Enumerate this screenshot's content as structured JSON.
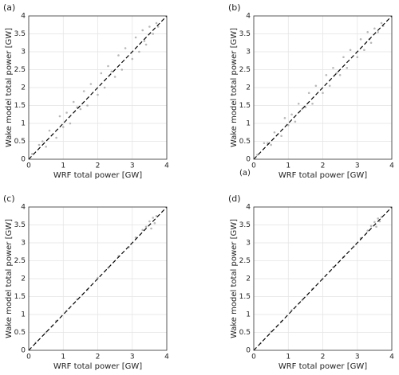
{
  "chart_data": [
    {
      "type": "scatter",
      "title": "(a)",
      "xlabel": "WRF total power [GW]",
      "ylabel": "Wake model total power [GW]",
      "color": "#888888",
      "grid": true,
      "identity_line": true,
      "xlim": [
        0,
        4
      ],
      "ylim": [
        0,
        4
      ],
      "xticks": [
        0,
        1,
        2,
        3,
        4
      ],
      "yticks": [
        0,
        0.5,
        1,
        1.5,
        2,
        2.5,
        3,
        3.5,
        4
      ],
      "x": [
        0.1,
        0.3,
        0.5,
        0.6,
        0.8,
        0.9,
        1.0,
        1.1,
        1.2,
        1.3,
        1.5,
        1.6,
        1.7,
        1.8,
        2.0,
        2.1,
        2.2,
        2.3,
        2.5,
        2.6,
        2.7,
        2.8,
        3.0,
        3.1,
        3.2,
        3.3,
        3.4,
        3.5,
        3.6,
        3.7,
        0.4,
        1.4,
        2.4,
        3.35,
        3.75
      ],
      "y": [
        0.15,
        0.4,
        0.35,
        0.8,
        0.6,
        1.2,
        0.9,
        1.3,
        1.0,
        1.6,
        1.4,
        1.9,
        1.5,
        2.1,
        1.8,
        2.4,
        2.0,
        2.6,
        2.3,
        2.9,
        2.5,
        3.1,
        2.8,
        3.4,
        3.0,
        3.6,
        3.2,
        3.7,
        3.5,
        3.8,
        0.5,
        1.45,
        2.45,
        3.3,
        3.7
      ]
    },
    {
      "type": "scatter",
      "title": "(b)",
      "annotation": "(a)",
      "xlabel": "WRF total power [GW]",
      "ylabel": "Wake model total power [GW]",
      "color": "#888888",
      "grid": true,
      "identity_line": true,
      "xlim": [
        0,
        4
      ],
      "ylim": [
        0,
        4
      ],
      "xticks": [
        0,
        1,
        2,
        3,
        4
      ],
      "yticks": [
        0,
        0.5,
        1,
        1.5,
        2,
        2.5,
        3,
        3.5,
        4
      ],
      "x": [
        0.1,
        0.3,
        0.5,
        0.6,
        0.8,
        0.9,
        1.0,
        1.1,
        1.2,
        1.3,
        1.5,
        1.6,
        1.7,
        1.8,
        2.0,
        2.1,
        2.2,
        2.3,
        2.5,
        2.6,
        2.7,
        2.8,
        3.0,
        3.1,
        3.2,
        3.3,
        3.4,
        3.5,
        3.6,
        3.7,
        0.4,
        1.4,
        2.4,
        3.35,
        3.75
      ],
      "y": [
        0.12,
        0.45,
        0.4,
        0.75,
        0.65,
        1.15,
        0.95,
        1.25,
        1.05,
        1.55,
        1.45,
        1.85,
        1.55,
        2.05,
        1.85,
        2.35,
        2.05,
        2.55,
        2.35,
        2.85,
        2.55,
        3.05,
        2.85,
        3.35,
        3.05,
        3.55,
        3.25,
        3.65,
        3.55,
        3.8,
        0.45,
        1.4,
        2.4,
        3.35,
        3.72
      ]
    },
    {
      "type": "scatter",
      "title": "(c)",
      "xlabel": "WRF total power [GW]",
      "ylabel": "Wake model total power [GW]",
      "color": "#888888",
      "grid": true,
      "identity_line": true,
      "xlim": [
        0,
        4
      ],
      "ylim": [
        0,
        4
      ],
      "xticks": [
        0,
        1,
        2,
        3,
        4
      ],
      "yticks": [
        0,
        0.5,
        1,
        1.5,
        2,
        2.5,
        3,
        3.5,
        4
      ],
      "x": [
        0.2,
        0.5,
        0.8,
        1.1,
        1.4,
        1.7,
        2.0,
        2.3,
        2.6,
        2.9,
        3.1,
        3.3,
        3.4,
        3.5,
        3.6,
        3.7,
        3.55,
        3.65
      ],
      "y": [
        0.21,
        0.5,
        0.82,
        1.1,
        1.42,
        1.69,
        2.02,
        2.3,
        2.63,
        2.88,
        3.15,
        3.36,
        3.45,
        3.6,
        3.7,
        3.75,
        3.4,
        3.55
      ]
    },
    {
      "type": "scatter",
      "title": "(d)",
      "xlabel": "WRF total power [GW]",
      "ylabel": "Wake model total power [GW]",
      "color": "#888888",
      "grid": true,
      "identity_line": true,
      "xlim": [
        0,
        4
      ],
      "ylim": [
        0,
        4
      ],
      "xticks": [
        0,
        1,
        2,
        3,
        4
      ],
      "yticks": [
        0,
        0.5,
        1,
        1.5,
        2,
        2.5,
        3,
        3.5,
        4
      ],
      "x": [
        0.2,
        0.5,
        0.8,
        1.1,
        1.4,
        1.7,
        2.0,
        2.3,
        2.6,
        2.9,
        3.1,
        3.3,
        3.4,
        3.5,
        3.6,
        3.7,
        3.55,
        3.65
      ],
      "y": [
        0.2,
        0.52,
        0.8,
        1.12,
        1.4,
        1.71,
        2.0,
        2.32,
        2.6,
        2.9,
        3.13,
        3.34,
        3.47,
        3.58,
        3.68,
        3.72,
        3.45,
        3.6
      ]
    }
  ]
}
